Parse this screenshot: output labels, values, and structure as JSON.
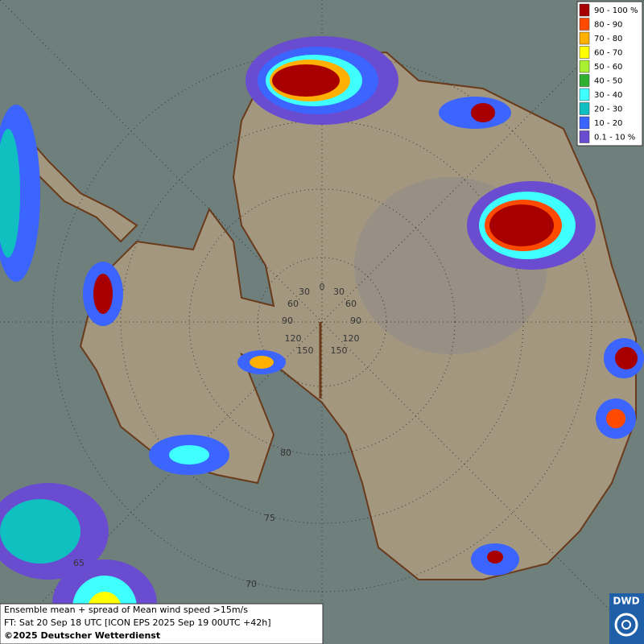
{
  "legend": {
    "items": [
      {
        "label": "90 - 100 %",
        "color": "#a80000"
      },
      {
        "label": "80 - 90",
        "color": "#ff4a00"
      },
      {
        "label": "70 - 80",
        "color": "#ffb000"
      },
      {
        "label": "60 - 70",
        "color": "#ffff00"
      },
      {
        "label": "50 - 60",
        "color": "#a8f030"
      },
      {
        "label": "40 - 50",
        "color": "#30b030"
      },
      {
        "label": "30 - 40",
        "color": "#40ffff"
      },
      {
        "label": "20 - 30",
        "color": "#10c0c0"
      },
      {
        "label": "10 - 20",
        "color": "#3c64ff"
      },
      {
        "label": "0.1 - 10 %",
        "color": "#6a4cd0"
      }
    ]
  },
  "grid_labels": {
    "longitude": [
      "0",
      "30",
      "30",
      "60",
      "60",
      "90",
      "90",
      "120",
      "120",
      "150",
      "150"
    ],
    "latitude": [
      "80",
      "75",
      "70",
      "65"
    ]
  },
  "footer": {
    "line1": "Ensemble mean + spread of Mean wind speed >15m/s",
    "line2": "FT: Sat 20 Sep 18 UTC [ICON EPS 2025 Sep 19 00UTC +42h]",
    "line3": "©2025 Deutscher Wetterdienst"
  },
  "logo": {
    "text": "DWD"
  }
}
